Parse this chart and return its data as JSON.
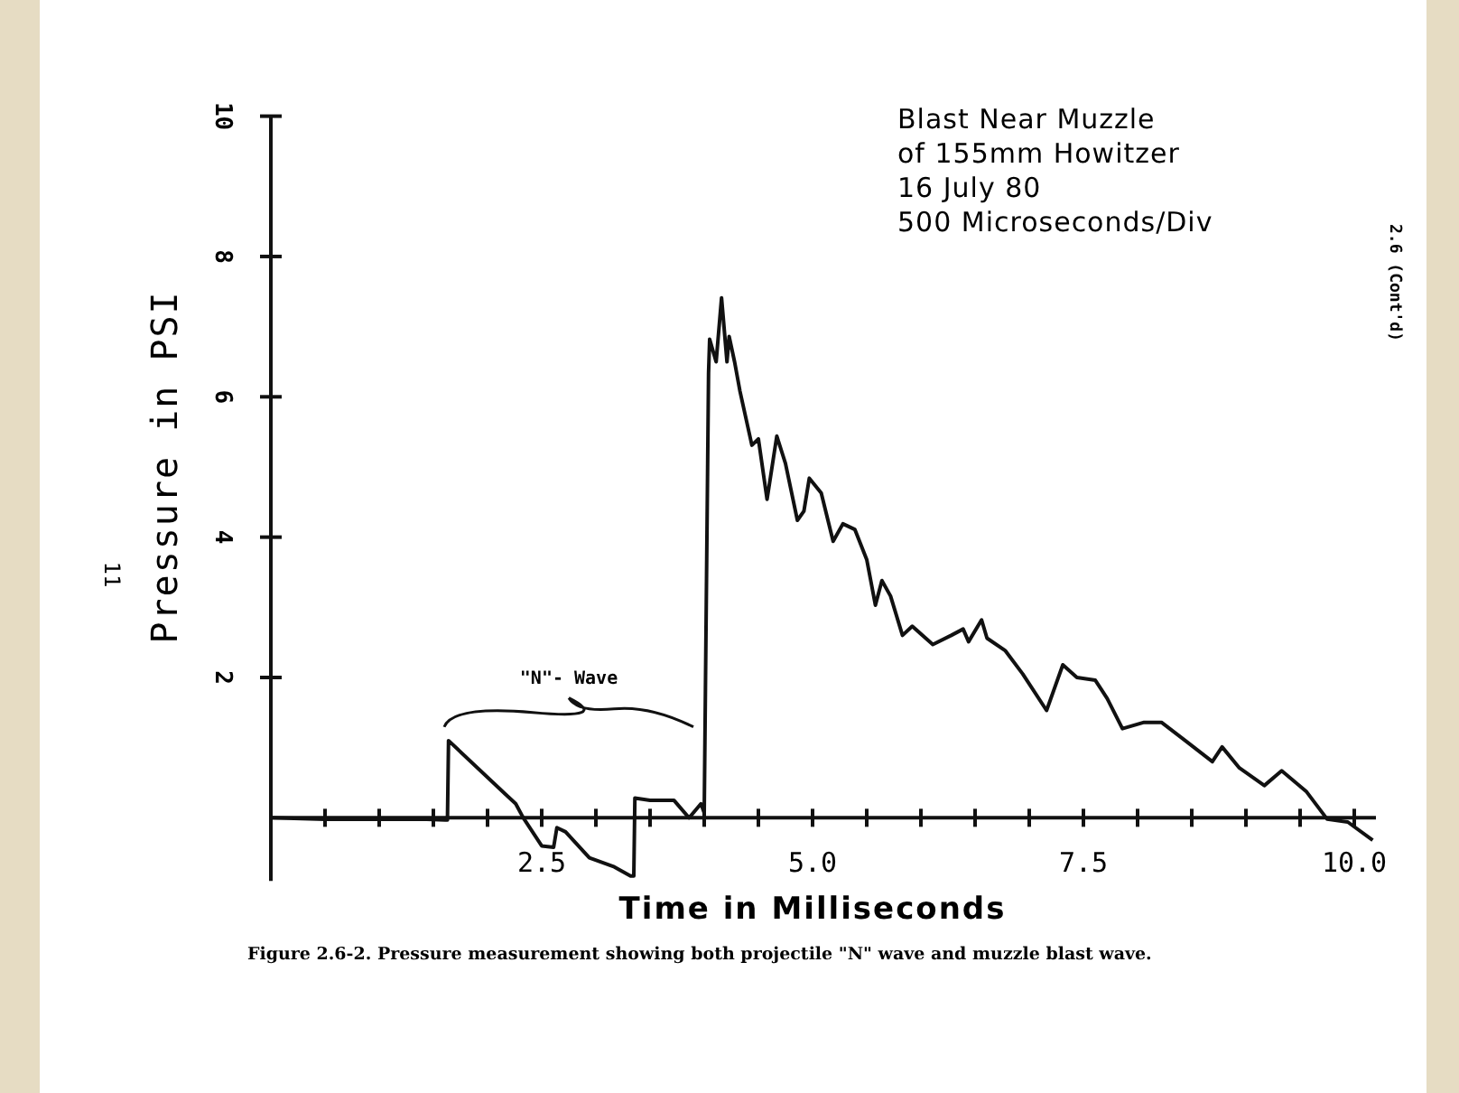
{
  "chart_data": {
    "type": "line",
    "title": "Blast Near Muzzle of 155mm Howitzer",
    "subtitle": "16 July 80",
    "xlabel": "Time in Milliseconds",
    "ylabel": "Pressure in PSI",
    "annotations": [
      "500 Microseconds/Div",
      "\"N\"- Wave",
      "2.6 (Cont'd)",
      "11",
      "Figure 2.6-2.  Pressure measurement showing both projectile \"N\" wave and muzzle blast wave."
    ],
    "series": [
      {
        "color": "#111111",
        "x": [
          0,
          0.5,
          1.0,
          1.44,
          1.61,
          1.63,
          1.64,
          2.17,
          2.26,
          2.33,
          2.5,
          2.61,
          2.64,
          2.72,
          2.94,
          3.17,
          3.32,
          3.35,
          3.36,
          3.5,
          3.72,
          3.86,
          3.97,
          4.0,
          4.04,
          4.05,
          4.11,
          4.16,
          4.21,
          4.23,
          4.28,
          4.33,
          4.44,
          4.5,
          4.58,
          4.67,
          4.75,
          4.86,
          4.92,
          4.97,
          5.08,
          5.19,
          5.28,
          5.39,
          5.5,
          5.58,
          5.64,
          5.72,
          5.83,
          5.92,
          6.11,
          6.28,
          6.39,
          6.44,
          6.56,
          6.61,
          6.78,
          6.94,
          7.16,
          7.31,
          7.44,
          7.61,
          7.72,
          7.86,
          8.06,
          8.22,
          8.44,
          8.69,
          8.78,
          8.94,
          9.17,
          9.33,
          9.56,
          9.75,
          9.94,
          10.17
        ],
        "values": [
          0,
          -0.02,
          -0.02,
          -0.02,
          -0.03,
          -0.03,
          1.1,
          0.33,
          0.2,
          0,
          -0.4,
          -0.42,
          -0.14,
          -0.2,
          -0.57,
          -0.7,
          -0.83,
          -0.83,
          0.28,
          0.25,
          0.25,
          0,
          0.2,
          0.07,
          6.34,
          6.82,
          6.5,
          7.41,
          6.5,
          6.86,
          6.5,
          6.08,
          5.31,
          5.4,
          4.54,
          5.44,
          5.05,
          4.24,
          4.37,
          4.84,
          4.63,
          3.94,
          4.19,
          4.11,
          3.68,
          3.03,
          3.38,
          3.16,
          2.6,
          2.73,
          2.47,
          2.6,
          2.69,
          2.51,
          2.82,
          2.56,
          2.38,
          2.05,
          1.53,
          2.18,
          2.0,
          1.96,
          1.7,
          1.27,
          1.36,
          1.36,
          1.1,
          0.8,
          1.01,
          0.71,
          0.46,
          0.67,
          0.37,
          -0.02,
          -0.06,
          -0.32
        ]
      }
    ],
    "xlim": [
      0,
      10.2
    ],
    "ylim": [
      -0.9,
      10
    ],
    "xticks": [
      {
        "value": 0.5,
        "label": null
      },
      {
        "value": 1,
        "label": null
      },
      {
        "value": 1.5,
        "label": null
      },
      {
        "value": 2,
        "label": null
      },
      {
        "value": 2.5,
        "label": "2.5"
      },
      {
        "value": 3,
        "label": null
      },
      {
        "value": 3.5,
        "label": null
      },
      {
        "value": 4,
        "label": null
      },
      {
        "value": 4.5,
        "label": null
      },
      {
        "value": 5,
        "label": "5.0"
      },
      {
        "value": 5.5,
        "label": null
      },
      {
        "value": 6,
        "label": null
      },
      {
        "value": 6.5,
        "label": null
      },
      {
        "value": 7,
        "label": null
      },
      {
        "value": 7.5,
        "label": "7.5"
      },
      {
        "value": 8,
        "label": null
      },
      {
        "value": 8.5,
        "label": null
      },
      {
        "value": 9,
        "label": null
      },
      {
        "value": 9.5,
        "label": null
      },
      {
        "value": 10,
        "label": "10.0"
      }
    ],
    "yticks": [
      2,
      4,
      6,
      8,
      10
    ],
    "grid": false,
    "marker": "none",
    "line_style": "solid"
  }
}
